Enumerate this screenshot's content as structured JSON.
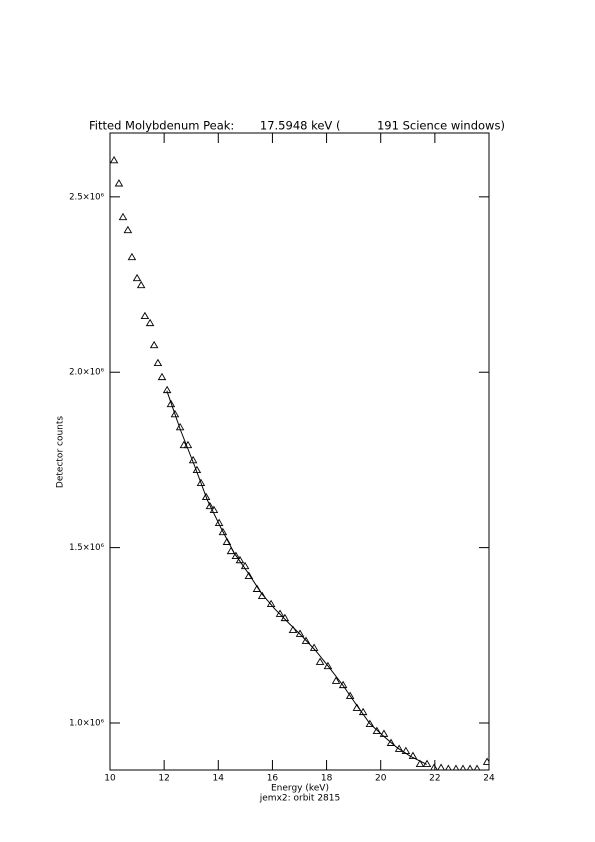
{
  "chart_data": {
    "type": "scatter",
    "title": "Fitted Molybdenum Peak:       17.5948 keV (          191 Science windows)",
    "xlabel": "Energy (keV)",
    "ylabel": "Detector counts",
    "subtitle": "jemx2: orbit 2815",
    "xlim": [
      10,
      24
    ],
    "ylim": [
      866000,
      2682000
    ],
    "xticks": [
      10,
      12,
      14,
      16,
      18,
      20,
      22,
      24
    ],
    "yticks": [
      {
        "value": 1000000,
        "label": "1.0×10⁶"
      },
      {
        "value": 1500000,
        "label": "1.5×10⁶"
      },
      {
        "value": 2000000,
        "label": "2.0×10⁶"
      },
      {
        "value": 2500000,
        "label": "2.5×10⁶"
      }
    ],
    "grid": false,
    "series": [
      {
        "type": "scatter",
        "marker": "triangle",
        "color": "#000000",
        "x": [
          10.15,
          10.33,
          10.48,
          10.66,
          10.81,
          11.0,
          11.15,
          11.29,
          11.48,
          11.63,
          11.77,
          11.92,
          12.11,
          12.25,
          12.4,
          12.59,
          12.73,
          12.88,
          13.07,
          13.21,
          13.36,
          13.55,
          13.69,
          13.84,
          14.03,
          14.17,
          14.32,
          14.47,
          14.65,
          14.8,
          14.99,
          15.13,
          15.43,
          15.62,
          15.95,
          16.28,
          16.46,
          16.76,
          17.02,
          17.24,
          17.54,
          17.76,
          18.05,
          18.35,
          18.61,
          18.87,
          19.12,
          19.35,
          19.6,
          19.86,
          20.12,
          20.38,
          20.68,
          20.93,
          21.19,
          21.45,
          21.71,
          21.97,
          22.23,
          22.5,
          22.78,
          23.04,
          23.3,
          23.56,
          23.93
        ],
        "values": [
          2604000,
          2538000,
          2442000,
          2405000,
          2328000,
          2268000,
          2248000,
          2160000,
          2140000,
          2077000,
          2026000,
          1986000,
          1949000,
          1909000,
          1880000,
          1843000,
          1792000,
          1792000,
          1749000,
          1721000,
          1684000,
          1644000,
          1618000,
          1607000,
          1570000,
          1544000,
          1516000,
          1490000,
          1476000,
          1464000,
          1447000,
          1419000,
          1382000,
          1362000,
          1339000,
          1311000,
          1299000,
          1265000,
          1254000,
          1234000,
          1214000,
          1174000,
          1162000,
          1120000,
          1108000,
          1077000,
          1043000,
          1031000,
          997000,
          977000,
          969000,
          943000,
          926000,
          920000,
          906000,
          883000,
          883000,
          872000,
          872000,
          869000,
          869000,
          869000,
          869000,
          869000,
          889000
        ]
      },
      {
        "type": "line",
        "color": "#000000",
        "x": [
          12.1,
          12.6,
          13.1,
          13.6,
          14.1,
          14.6,
          15.1,
          15.6,
          16.1,
          16.6,
          17.1,
          17.6,
          18.1,
          18.6,
          19.1,
          19.6,
          20.1,
          20.6,
          21.1,
          21.7
        ],
        "values": [
          1947000,
          1836000,
          1738000,
          1635000,
          1556000,
          1483000,
          1428000,
          1369000,
          1324000,
          1285000,
          1247000,
          1206000,
          1158000,
          1108000,
          1052000,
          998000,
          963000,
          930000,
          905000,
          882000
        ]
      }
    ]
  }
}
